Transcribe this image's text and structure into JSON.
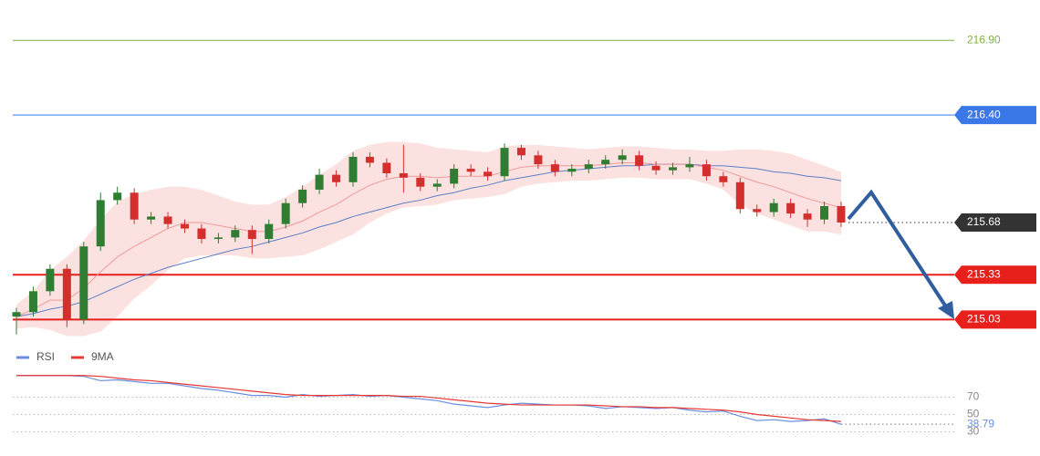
{
  "chart_data": [
    {
      "type": "candlestick",
      "up_color": "#2e7d32",
      "down_color": "#d32f2f",
      "ylim": [
        214.88,
        217.17
      ],
      "open": [
        215.05,
        215.08,
        215.22,
        215.37,
        215.03,
        215.52,
        215.83,
        215.88,
        215.7,
        215.72,
        215.67,
        215.64,
        215.57,
        215.58,
        215.63,
        215.57,
        215.67,
        215.81,
        215.9,
        216.0,
        215.95,
        216.12,
        216.08,
        216.01,
        215.98,
        215.92,
        215.94,
        216.04,
        216.02,
        215.99,
        216.18,
        216.13,
        216.07,
        216.02,
        216.04,
        216.07,
        216.1,
        216.13,
        216.06,
        216.03,
        216.05,
        216.07,
        215.99,
        215.95,
        215.77,
        215.75,
        215.81,
        215.74,
        215.7,
        215.79
      ],
      "high": [
        215.11,
        215.25,
        215.4,
        215.4,
        215.55,
        215.88,
        215.92,
        215.91,
        215.75,
        215.75,
        215.7,
        215.67,
        215.61,
        215.66,
        215.66,
        215.7,
        215.84,
        215.93,
        216.04,
        216.03,
        216.15,
        216.15,
        216.11,
        216.2,
        216.01,
        215.97,
        216.07,
        216.07,
        216.05,
        216.21,
        216.2,
        216.16,
        216.1,
        216.07,
        216.1,
        216.13,
        216.17,
        216.16,
        216.09,
        216.08,
        216.12,
        216.1,
        216.02,
        215.98,
        215.8,
        215.84,
        215.84,
        215.77,
        215.82,
        215.82
      ],
      "low": [
        214.93,
        215.05,
        215.19,
        214.98,
        215.0,
        215.49,
        215.8,
        215.67,
        215.67,
        215.64,
        215.61,
        215.54,
        215.54,
        215.55,
        215.47,
        215.54,
        215.64,
        215.78,
        215.87,
        215.92,
        215.92,
        216.05,
        215.98,
        215.88,
        215.89,
        215.89,
        215.91,
        215.99,
        215.96,
        215.96,
        216.1,
        216.04,
        215.99,
        215.99,
        216.01,
        216.04,
        216.07,
        216.03,
        216.0,
        216.0,
        216.02,
        215.96,
        215.92,
        215.74,
        215.72,
        215.72,
        215.71,
        215.65,
        215.67,
        215.65
      ],
      "close": [
        215.08,
        215.22,
        215.37,
        215.03,
        215.52,
        215.83,
        215.88,
        215.7,
        215.72,
        215.67,
        215.64,
        215.57,
        215.58,
        215.63,
        215.57,
        215.67,
        215.81,
        215.9,
        216.0,
        215.95,
        216.12,
        216.08,
        216.01,
        215.98,
        215.92,
        215.94,
        216.04,
        216.02,
        215.99,
        216.18,
        216.13,
        216.07,
        216.02,
        216.04,
        216.07,
        216.1,
        216.13,
        216.06,
        216.03,
        216.05,
        216.07,
        215.99,
        215.95,
        215.77,
        215.75,
        215.81,
        215.74,
        215.7,
        215.79,
        215.68
      ],
      "ma_fast": {
        "color": "#ef9a9a",
        "values": [
          215.05,
          215.1,
          215.16,
          215.16,
          215.24,
          215.35,
          215.45,
          215.52,
          215.58,
          215.64,
          215.68,
          215.68,
          215.66,
          215.64,
          215.62,
          215.62,
          215.65,
          215.69,
          215.75,
          215.8,
          215.87,
          215.93,
          215.97,
          215.99,
          215.99,
          215.98,
          215.99,
          215.99,
          215.99,
          216.02,
          216.05,
          216.06,
          216.06,
          216.06,
          216.06,
          216.07,
          216.08,
          216.08,
          216.07,
          216.07,
          216.07,
          216.05,
          216.03,
          215.99,
          215.95,
          215.92,
          215.88,
          215.84,
          215.81,
          215.78
        ]
      },
      "ma_slow": {
        "color": "#5c7fc4",
        "values": [
          215.05,
          215.07,
          215.1,
          215.12,
          215.15,
          215.2,
          215.25,
          215.3,
          215.34,
          215.38,
          215.41,
          215.44,
          215.47,
          215.5,
          215.52,
          215.55,
          215.58,
          215.61,
          215.65,
          215.68,
          215.72,
          215.75,
          215.78,
          215.81,
          215.83,
          215.86,
          215.88,
          215.91,
          215.93,
          215.96,
          215.98,
          216.0,
          216.02,
          216.03,
          216.04,
          216.05,
          216.06,
          216.06,
          216.07,
          216.07,
          216.07,
          216.06,
          216.06,
          216.05,
          216.04,
          216.02,
          216.01,
          215.99,
          215.98,
          215.96
        ]
      },
      "band_color": "#fadbd8",
      "band_upper": [
        215.13,
        215.22,
        215.36,
        215.45,
        215.56,
        215.7,
        215.82,
        215.87,
        215.9,
        215.92,
        215.92,
        215.9,
        215.86,
        215.82,
        215.8,
        215.8,
        215.85,
        215.92,
        216.0,
        216.07,
        216.16,
        216.2,
        216.22,
        216.22,
        216.21,
        216.18,
        216.17,
        216.16,
        216.15,
        216.19,
        216.2,
        216.2,
        216.19,
        216.18,
        216.17,
        216.18,
        216.19,
        216.19,
        216.18,
        216.17,
        216.17,
        216.16,
        216.16,
        216.17,
        216.17,
        216.16,
        216.14,
        216.1,
        216.06,
        216.02
      ],
      "band_lower": [
        214.97,
        214.98,
        214.96,
        214.92,
        214.92,
        214.95,
        215.05,
        215.17,
        215.26,
        215.36,
        215.44,
        215.46,
        215.46,
        215.46,
        215.44,
        215.44,
        215.45,
        215.46,
        215.5,
        215.55,
        215.6,
        215.68,
        215.74,
        215.78,
        215.79,
        215.8,
        215.83,
        215.84,
        215.85,
        215.87,
        215.92,
        215.94,
        215.95,
        215.96,
        215.96,
        215.97,
        215.98,
        215.98,
        215.97,
        215.97,
        215.97,
        215.94,
        215.9,
        215.8,
        215.74,
        215.7,
        215.66,
        215.62,
        215.62,
        215.6
      ],
      "levels": [
        {
          "value": 216.9,
          "label": "216.90",
          "color": "#7cb342",
          "boxed": false,
          "line_style": "solid"
        },
        {
          "value": 216.4,
          "label": "216.40",
          "color": "#3b78e7",
          "boxed": true,
          "line_style": "solid"
        },
        {
          "value": 215.68,
          "label": "215.68",
          "color": "#333333",
          "boxed": true,
          "line_style": "dotted"
        },
        {
          "value": 215.33,
          "label": "215.33",
          "color": "#e8201c",
          "boxed": true,
          "line_style": "bold"
        },
        {
          "value": 215.03,
          "label": "215.03",
          "color": "#e8201c",
          "boxed": true,
          "line_style": "bold"
        }
      ]
    },
    {
      "type": "line",
      "ylim": [
        20,
        100
      ],
      "yticks": [
        70,
        50,
        30
      ],
      "grid": true,
      "series": [
        {
          "name": "RSI",
          "color": "#6a8fe0",
          "values": [
            95,
            95,
            95,
            95,
            94,
            89,
            90,
            88,
            86,
            86,
            83,
            80,
            78,
            75,
            72,
            72,
            70,
            73,
            71,
            72,
            73,
            71,
            72,
            70,
            68,
            66,
            62,
            60,
            58,
            61,
            63,
            62,
            61,
            61,
            60,
            57,
            59,
            58,
            57,
            58,
            55,
            53,
            54,
            48,
            43,
            44,
            42,
            43,
            45,
            38.79
          ]
        },
        {
          "name": "9MA",
          "color": "#e53935",
          "values": [
            95,
            95,
            95,
            95,
            95,
            94,
            92,
            90,
            89,
            87,
            85,
            83,
            81,
            79,
            77,
            75,
            73,
            72,
            72,
            72,
            72,
            72,
            72,
            71,
            71,
            69,
            67,
            65,
            63,
            62,
            61,
            61,
            61,
            61,
            61,
            60,
            59,
            59,
            58,
            58,
            57,
            56,
            55,
            53,
            50,
            48,
            46,
            44,
            43,
            42
          ]
        }
      ]
    }
  ]
}
